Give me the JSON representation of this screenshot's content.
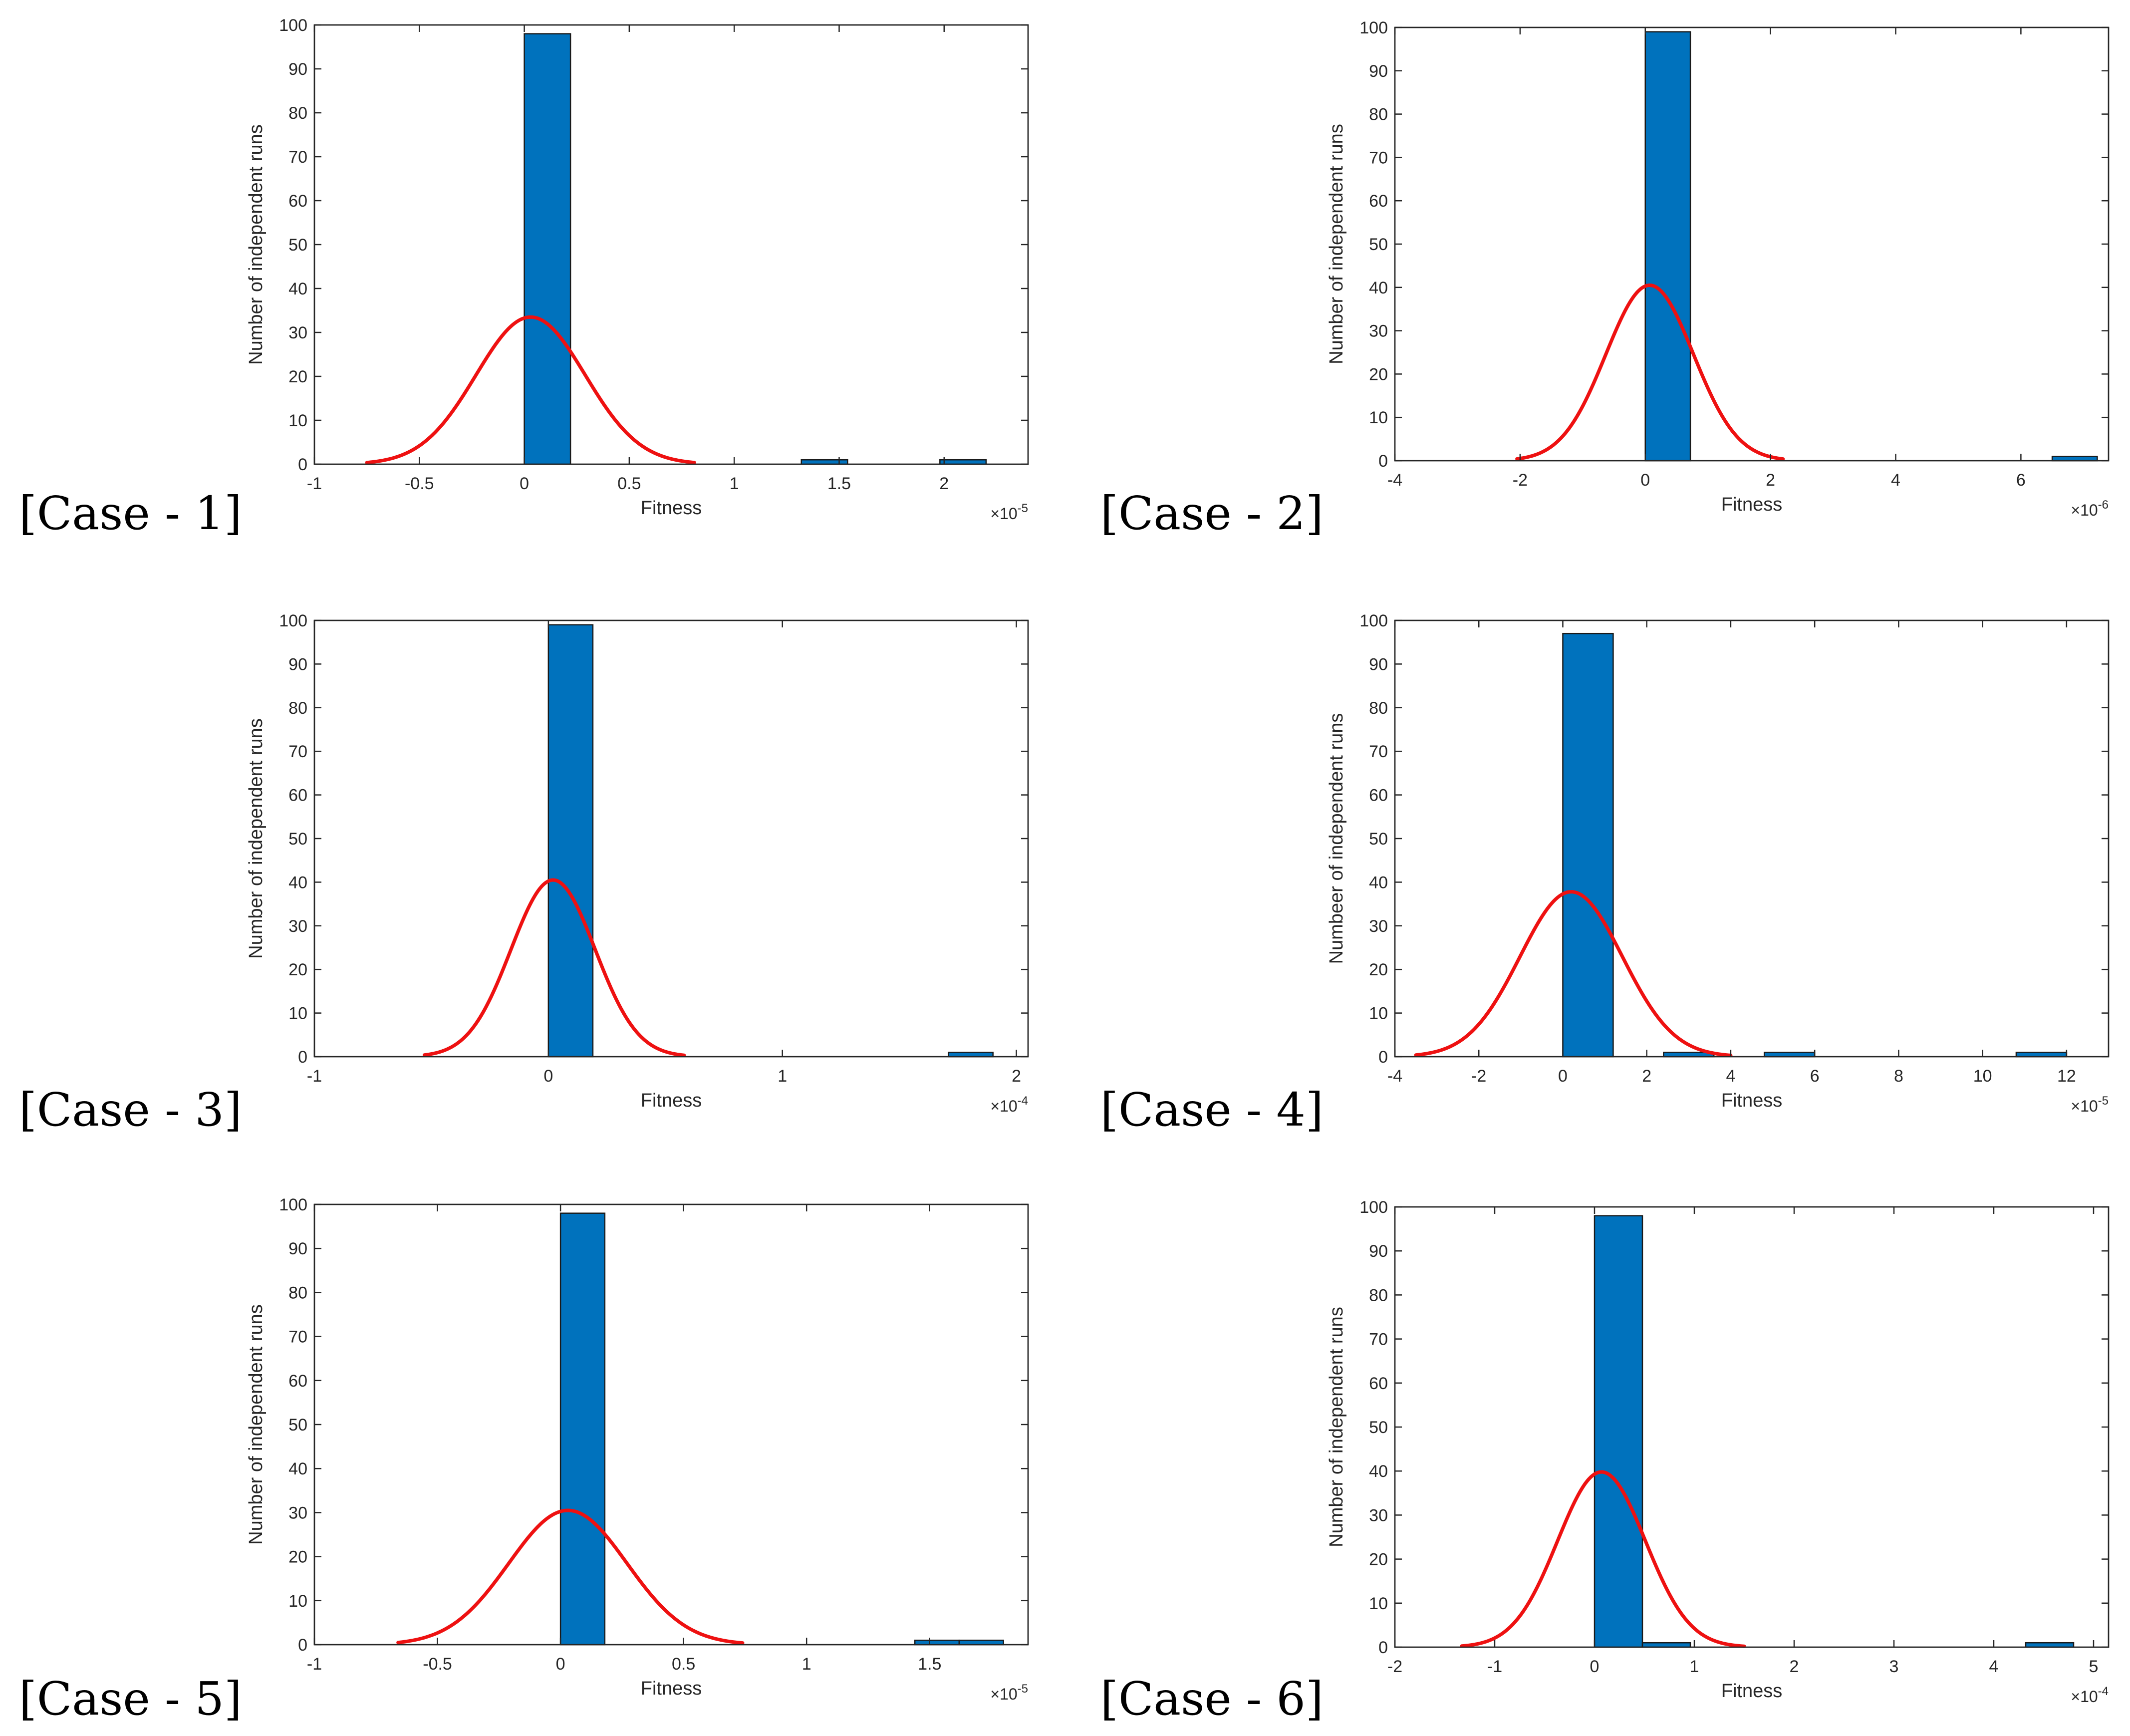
{
  "colors": {
    "bar": "#0072bd",
    "curve": "#ee1111",
    "axis": "#262626"
  },
  "chart_data": [
    {
      "type": "bar",
      "case_label": "[Case - 1]",
      "xlabel": "Fitness",
      "ylabel": "Number of independent runs",
      "exponent": "-5",
      "xlim": [
        -1,
        2.4
      ],
      "ylim": [
        0,
        100
      ],
      "xticks": [
        -1,
        -0.5,
        0,
        0.5,
        1,
        1.5,
        2
      ],
      "xtick_labels": [
        "-1",
        "-0.5",
        "0",
        "0.5",
        "1",
        "1.5",
        "2"
      ],
      "yticks": [
        0,
        10,
        20,
        30,
        40,
        50,
        60,
        70,
        80,
        90,
        100
      ],
      "bars": [
        {
          "x0": 0.0,
          "x1": 0.22,
          "value": 98
        },
        {
          "x0": 1.32,
          "x1": 1.54,
          "value": 1
        },
        {
          "x0": 1.98,
          "x1": 2.2,
          "value": 1
        }
      ],
      "fit": {
        "mean": 0.03,
        "sigma": 0.26,
        "peak": 33.5,
        "x_from": -0.75,
        "x_to": 0.81
      }
    },
    {
      "type": "bar",
      "case_label": "[Case - 2]",
      "xlabel": "Fitness",
      "ylabel": "Number of independent runs",
      "exponent": "-6",
      "xlim": [
        -4,
        7.4
      ],
      "ylim": [
        0,
        100
      ],
      "xticks": [
        -4,
        -2,
        0,
        2,
        4,
        6
      ],
      "xtick_labels": [
        "-4",
        "-2",
        "0",
        "2",
        "4",
        "6"
      ],
      "yticks": [
        0,
        10,
        20,
        30,
        40,
        50,
        60,
        70,
        80,
        90,
        100
      ],
      "bars": [
        {
          "x0": 0.0,
          "x1": 0.72,
          "value": 99
        },
        {
          "x0": 6.5,
          "x1": 7.22,
          "value": 1
        }
      ],
      "fit": {
        "mean": 0.07,
        "sigma": 0.7,
        "peak": 40.5,
        "x_from": -2.05,
        "x_to": 2.2
      }
    },
    {
      "type": "bar",
      "case_label": "[Case - 3]",
      "xlabel": "Fitness",
      "ylabel": "Number of independent runs",
      "exponent": "-4",
      "xlim": [
        -1,
        2.05
      ],
      "ylim": [
        0,
        100
      ],
      "xticks": [
        -1,
        0,
        1,
        2
      ],
      "xtick_labels": [
        "-1",
        "0",
        "1",
        "2"
      ],
      "yticks": [
        0,
        10,
        20,
        30,
        40,
        50,
        60,
        70,
        80,
        90,
        100
      ],
      "bars": [
        {
          "x0": 0.0,
          "x1": 0.19,
          "value": 99
        },
        {
          "x0": 1.71,
          "x1": 1.9,
          "value": 1
        }
      ],
      "fit": {
        "mean": 0.02,
        "sigma": 0.18,
        "peak": 40.5,
        "x_from": -0.53,
        "x_to": 0.58
      }
    },
    {
      "type": "bar",
      "case_label": "[Case - 4]",
      "xlabel": "Fitness",
      "ylabel": "Numbeer of independent runs",
      "exponent": "-5",
      "xlim": [
        -4,
        13
      ],
      "ylim": [
        0,
        100
      ],
      "xticks": [
        -4,
        -2,
        0,
        2,
        4,
        6,
        8,
        10,
        12
      ],
      "xtick_labels": [
        "-4",
        "-2",
        "0",
        "2",
        "4",
        "6",
        "8",
        "10",
        "12"
      ],
      "yticks": [
        0,
        10,
        20,
        30,
        40,
        50,
        60,
        70,
        80,
        90,
        100
      ],
      "bars": [
        {
          "x0": 0.0,
          "x1": 1.2,
          "value": 97
        },
        {
          "x0": 2.4,
          "x1": 3.6,
          "value": 1
        },
        {
          "x0": 4.8,
          "x1": 6.0,
          "value": 1
        },
        {
          "x0": 10.8,
          "x1": 12.0,
          "value": 1
        }
      ],
      "fit": {
        "mean": 0.2,
        "sigma": 1.22,
        "peak": 37.8,
        "x_from": -3.5,
        "x_to": 4.0
      }
    },
    {
      "type": "bar",
      "case_label": "[Case - 5]",
      "xlabel": "Fitness",
      "ylabel": "Number of independent runs",
      "exponent": "-5",
      "xlim": [
        -1,
        1.9
      ],
      "ylim": [
        0,
        100
      ],
      "xticks": [
        -1,
        -0.5,
        0,
        0.5,
        1,
        1.5
      ],
      "xtick_labels": [
        "-1",
        "-0.5",
        "0",
        "0.5",
        "1",
        "1.5"
      ],
      "yticks": [
        0,
        10,
        20,
        30,
        40,
        50,
        60,
        70,
        80,
        90,
        100
      ],
      "bars": [
        {
          "x0": 0.0,
          "x1": 0.18,
          "value": 98
        },
        {
          "x0": 1.44,
          "x1": 1.62,
          "value": 1
        },
        {
          "x0": 1.62,
          "x1": 1.8,
          "value": 1
        }
      ],
      "fit": {
        "mean": 0.03,
        "sigma": 0.24,
        "peak": 30.5,
        "x_from": -0.66,
        "x_to": 0.74
      }
    },
    {
      "type": "bar",
      "case_label": "[Case - 6]",
      "xlabel": "Fitness",
      "ylabel": "Number of independent runs",
      "exponent": "-4",
      "xlim": [
        -2,
        5.15
      ],
      "ylim": [
        0,
        100
      ],
      "xticks": [
        -2,
        -1,
        0,
        1,
        2,
        3,
        4,
        5
      ],
      "xtick_labels": [
        "-2",
        "-1",
        "0",
        "1",
        "2",
        "3",
        "4",
        "5"
      ],
      "yticks": [
        0,
        10,
        20,
        30,
        40,
        50,
        60,
        70,
        80,
        90,
        100
      ],
      "bars": [
        {
          "x0": 0.0,
          "x1": 0.48,
          "value": 98
        },
        {
          "x0": 0.48,
          "x1": 0.96,
          "value": 1
        },
        {
          "x0": 4.32,
          "x1": 4.8,
          "value": 1
        }
      ],
      "fit": {
        "mean": 0.07,
        "sigma": 0.44,
        "peak": 39.8,
        "x_from": -1.33,
        "x_to": 1.5
      }
    }
  ]
}
